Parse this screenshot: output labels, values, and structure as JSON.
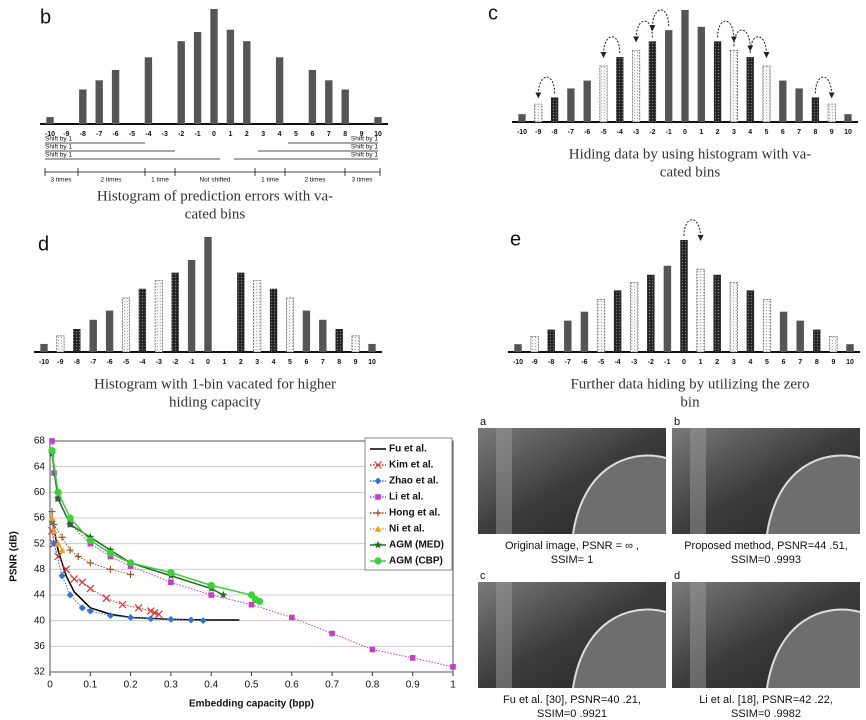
{
  "chart_data": [
    {
      "type": "histogram-panel",
      "label": "b",
      "categories": [
        "-10",
        "-9",
        "-8",
        "-7",
        "-6",
        "-5",
        "-4",
        "-3",
        "-2",
        "-1",
        "0",
        "1",
        "2",
        "3",
        "4",
        "5",
        "6",
        "7",
        "8",
        "9",
        "10"
      ],
      "values": [
        6,
        0,
        30,
        38,
        47,
        0,
        58,
        0,
        72,
        80,
        100,
        82,
        72,
        0,
        58,
        0,
        47,
        38,
        30,
        0,
        6
      ],
      "color": "#555",
      "annotations": [
        "Shift by 1",
        "Shift by 1",
        "Shift by 1",
        "Shift by 1",
        "Shift by 1",
        "Shift by 1",
        "3 times",
        "2 times",
        "1 time",
        "Not shifted",
        "1 time",
        "2 times",
        "3 times"
      ],
      "caption": [
        "Histogram of prediction errors with va-",
        "cated bins"
      ]
    },
    {
      "type": "histogram-panel",
      "label": "c",
      "categories": [
        "-10",
        "-9",
        "-8",
        "-7",
        "-6",
        "-5",
        "-4",
        "-3",
        "-2",
        "-1",
        "0",
        "1",
        "2",
        "3",
        "4",
        "5",
        "6",
        "7",
        "8",
        "9",
        "10"
      ],
      "values": [
        7,
        16,
        22,
        30,
        37,
        50,
        58,
        64,
        72,
        82,
        100,
        85,
        72,
        64,
        58,
        50,
        37,
        30,
        22,
        16,
        7
      ],
      "color": "#555",
      "patterns": [
        "solid",
        "dotted",
        "hatched",
        "solid",
        "solid",
        "dotted",
        "hatched",
        "dotted",
        "hatched",
        "solid",
        "solid",
        "solid",
        "hatched",
        "dotted",
        "hatched",
        "dotted",
        "solid",
        "solid",
        "hatched",
        "dotted",
        "solid"
      ],
      "caption": [
        "Hiding data by using histogram with va-",
        "cated bins"
      ]
    },
    {
      "type": "histogram-panel",
      "label": "d",
      "categories": [
        "-10",
        "-9",
        "-8",
        "-7",
        "-6",
        "-5",
        "-4",
        "-3",
        "-2",
        "-1",
        "0",
        "1",
        "2",
        "3",
        "4",
        "5",
        "6",
        "7",
        "8",
        "9",
        "10"
      ],
      "values": [
        7,
        14,
        20,
        28,
        36,
        47,
        55,
        62,
        69,
        80,
        100,
        0,
        69,
        62,
        55,
        47,
        36,
        28,
        20,
        14,
        7
      ],
      "color": "#555",
      "patterns": [
        "solid",
        "dotted",
        "hatched",
        "solid",
        "solid",
        "dotted",
        "hatched",
        "dotted",
        "hatched",
        "solid",
        "solid",
        "solid",
        "hatched",
        "dotted",
        "hatched",
        "dotted",
        "solid",
        "solid",
        "hatched",
        "dotted",
        "solid"
      ],
      "caption": [
        "Histogram with 1-bin vacated for higher",
        "hiding capacity"
      ]
    },
    {
      "type": "histogram-panel",
      "label": "e",
      "categories": [
        "-10",
        "-9",
        "-8",
        "-7",
        "-6",
        "-5",
        "-4",
        "-3",
        "-2",
        "-1",
        "0",
        "1",
        "2",
        "3",
        "4",
        "5",
        "6",
        "7",
        "8",
        "9",
        "10"
      ],
      "values": [
        7,
        14,
        20,
        28,
        36,
        47,
        55,
        62,
        69,
        77,
        100,
        74,
        69,
        62,
        55,
        47,
        36,
        28,
        20,
        14,
        7
      ],
      "color": "#555",
      "patterns": [
        "solid",
        "dotted",
        "hatched",
        "solid",
        "solid",
        "dotted",
        "hatched",
        "dotted",
        "hatched",
        "solid",
        "hatched",
        "dotted",
        "hatched",
        "dotted",
        "hatched",
        "dotted",
        "solid",
        "solid",
        "hatched",
        "dotted",
        "solid"
      ],
      "caption": [
        "Further data hiding by utilizing the zero",
        "bin"
      ]
    },
    {
      "type": "line",
      "x_label": "Embedding capacity (bpp)",
      "y_label": "PSNR (dB)",
      "xlim": [
        0,
        1
      ],
      "xticks": [
        0,
        0.1,
        0.2,
        0.3,
        0.4,
        0.5,
        0.6,
        0.7,
        0.8,
        0.9,
        1
      ],
      "ylim": [
        32,
        68
      ],
      "yticks": [
        32,
        36,
        40,
        44,
        48,
        52,
        56,
        60,
        64,
        68
      ],
      "grid": true,
      "series": [
        {
          "name": "Fu et al.",
          "color": "#000000",
          "marker": "none",
          "dash": "solid",
          "x": [
            0.005,
            0.02,
            0.04,
            0.06,
            0.1,
            0.15,
            0.2,
            0.3,
            0.4,
            0.47
          ],
          "values": [
            56,
            51,
            47,
            44.5,
            42,
            41,
            40.5,
            40.2,
            40.1,
            40.1
          ]
        },
        {
          "name": "Kim et al.",
          "color": "#e03030",
          "marker": "x",
          "dash": "dotted",
          "x": [
            0.005,
            0.01,
            0.02,
            0.04,
            0.06,
            0.08,
            0.1,
            0.14,
            0.18,
            0.22,
            0.25,
            0.26,
            0.27
          ],
          "values": [
            54,
            52,
            50,
            48,
            46.5,
            46,
            45,
            43.5,
            42.5,
            42,
            41.5,
            41.2,
            41
          ]
        },
        {
          "name": "Zhao et al.",
          "color": "#2e75d6",
          "marker": "diamond",
          "dash": "dotted",
          "x": [
            0.005,
            0.01,
            0.03,
            0.05,
            0.08,
            0.1,
            0.15,
            0.2,
            0.25,
            0.3,
            0.35,
            0.38
          ],
          "values": [
            55.5,
            52,
            47,
            44,
            42,
            41.5,
            40.8,
            40.5,
            40.3,
            40.2,
            40.1,
            40
          ]
        },
        {
          "name": "Li et al.",
          "color": "#c83cc8",
          "marker": "square",
          "dash": "dotted",
          "x": [
            0.005,
            0.01,
            0.02,
            0.05,
            0.1,
            0.15,
            0.2,
            0.3,
            0.4,
            0.5,
            0.6,
            0.7,
            0.8,
            0.9,
            1
          ],
          "values": [
            68,
            63,
            59,
            55,
            52,
            50,
            48.5,
            46,
            44,
            42.5,
            40.5,
            38,
            35.5,
            34.2,
            32.8
          ]
        },
        {
          "name": "Hong et al.",
          "color": "#a0522d",
          "marker": "plus",
          "dash": "dotted",
          "x": [
            0.005,
            0.01,
            0.03,
            0.05,
            0.07,
            0.1,
            0.15,
            0.2
          ],
          "values": [
            57,
            55,
            53,
            51,
            50,
            49,
            48,
            47.2
          ]
        },
        {
          "name": "Ni et al.",
          "color": "#f0a020",
          "marker": "triangle",
          "dash": "dotted",
          "x": [
            0.005,
            0.01,
            0.02,
            0.03
          ],
          "values": [
            56,
            54,
            52,
            51
          ]
        },
        {
          "name": "AGM (MED)",
          "color": "#1e6e1e",
          "marker": "star",
          "dash": "solid",
          "x": [
            0.005,
            0.02,
            0.05,
            0.1,
            0.15,
            0.2,
            0.3,
            0.4,
            0.43
          ],
          "values": [
            66,
            59,
            55,
            53,
            51,
            49,
            47,
            45,
            44
          ]
        },
        {
          "name": "AGM (CBP)",
          "color": "#3ad23a",
          "marker": "circle",
          "dash": "solid",
          "x": [
            0.005,
            0.02,
            0.05,
            0.1,
            0.15,
            0.2,
            0.3,
            0.4,
            0.5,
            0.51,
            0.52
          ],
          "values": [
            66.5,
            60,
            56,
            52.5,
            50.5,
            49,
            47.5,
            45.5,
            44,
            43.3,
            43
          ]
        }
      ]
    }
  ],
  "images": [
    {
      "label": "a",
      "caption": [
        "Original image, PSNR =     ∞ ,",
        "SSIM= 1"
      ]
    },
    {
      "label": "b",
      "caption": [
        "Proposed method, PSNR=44 .51,",
        "SSIM=0 .9993"
      ]
    },
    {
      "label": "c",
      "caption": [
        "Fu et al. [30], PSNR=40 .21,",
        "SSIM=0 .9921"
      ]
    },
    {
      "label": "d",
      "caption": [
        "Li et al. [18], PSNR=42 .22,",
        "SSIM=0 .9982"
      ]
    }
  ]
}
